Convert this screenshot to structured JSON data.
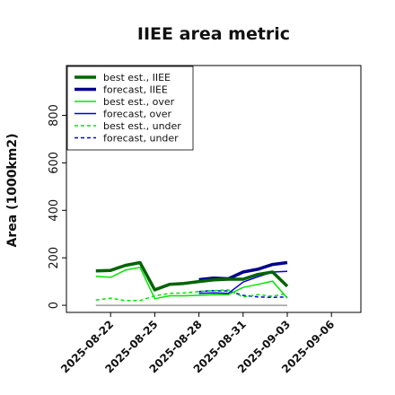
{
  "chart_data": {
    "type": "line",
    "title": "IIEE area metric",
    "ylabel": "Area (1000km2)",
    "xlabel": "",
    "x_ticks": [
      "2025-08-22",
      "2025-08-25",
      "2025-08-28",
      "2025-08-31",
      "2025-09-03",
      "2025-09-06"
    ],
    "highlight_tick": "2025-08-28",
    "highlight_color": "#228b22",
    "xlim": [
      "2025-08-19",
      "2025-09-08"
    ],
    "ylim": [
      -30,
      1010
    ],
    "y_ticks": [
      0,
      200,
      400,
      600,
      800
    ],
    "legend_position": "upper-left",
    "grid": false,
    "series": [
      {
        "name": "best est., IIEE",
        "color": "#006400",
        "dash": "solid",
        "width": 3.5,
        "x": [
          "2025-08-21",
          "2025-08-22",
          "2025-08-23",
          "2025-08-24",
          "2025-08-25",
          "2025-08-26",
          "2025-08-27",
          "2025-08-28",
          "2025-08-29",
          "2025-08-30",
          "2025-08-31",
          "2025-09-01",
          "2025-09-02",
          "2025-09-03"
        ],
        "values": [
          145,
          147,
          168,
          180,
          65,
          88,
          92,
          100,
          107,
          110,
          110,
          130,
          140,
          80
        ]
      },
      {
        "name": "forecast, IIEE",
        "color": "#00008b",
        "dash": "solid",
        "width": 3.5,
        "x": [
          "2025-08-28",
          "2025-08-29",
          "2025-08-30",
          "2025-08-31",
          "2025-09-01",
          "2025-09-02",
          "2025-09-03"
        ],
        "values": [
          108,
          115,
          112,
          140,
          152,
          172,
          180
        ]
      },
      {
        "name": "best est., over",
        "color": "#00e600",
        "dash": "solid",
        "width": 1.5,
        "x": [
          "2025-08-21",
          "2025-08-22",
          "2025-08-23",
          "2025-08-24",
          "2025-08-25",
          "2025-08-26",
          "2025-08-27",
          "2025-08-28",
          "2025-08-29",
          "2025-08-30",
          "2025-08-31",
          "2025-09-01",
          "2025-09-02",
          "2025-09-03"
        ],
        "values": [
          122,
          118,
          148,
          160,
          28,
          40,
          40,
          42,
          45,
          45,
          75,
          88,
          102,
          30
        ]
      },
      {
        "name": "forecast, over",
        "color": "#0000ee",
        "dash": "solid",
        "width": 1.5,
        "x": [
          "2025-08-28",
          "2025-08-29",
          "2025-08-30",
          "2025-08-31",
          "2025-09-01",
          "2025-09-02",
          "2025-09-03"
        ],
        "values": [
          50,
          52,
          50,
          98,
          120,
          140,
          143
        ]
      },
      {
        "name": "best est., under",
        "color": "#00e600",
        "dash": "dashed",
        "width": 1.5,
        "x": [
          "2025-08-21",
          "2025-08-22",
          "2025-08-23",
          "2025-08-24",
          "2025-08-25",
          "2025-08-26",
          "2025-08-27",
          "2025-08-28",
          "2025-08-29",
          "2025-08-30",
          "2025-08-31",
          "2025-09-01",
          "2025-09-02",
          "2025-09-03"
        ],
        "values": [
          22,
          30,
          20,
          20,
          40,
          50,
          52,
          58,
          62,
          65,
          35,
          45,
          38,
          50
        ]
      },
      {
        "name": "forecast, under",
        "color": "#0000ee",
        "dash": "dashed",
        "width": 1.5,
        "x": [
          "2025-08-28",
          "2025-08-29",
          "2025-08-30",
          "2025-08-31",
          "2025-09-01",
          "2025-09-02",
          "2025-09-03"
        ],
        "values": [
          58,
          62,
          60,
          42,
          35,
          33,
          35
        ]
      },
      {
        "name": "",
        "color": "#888888",
        "dash": "solid",
        "width": 1.2,
        "x": [
          "2025-08-21",
          "2025-09-03"
        ],
        "values": [
          0,
          0
        ]
      }
    ]
  }
}
